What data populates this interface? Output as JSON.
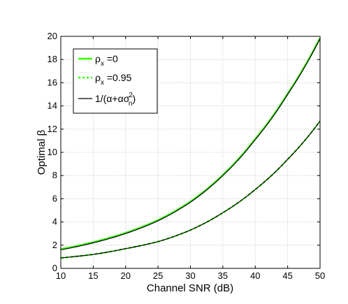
{
  "chart_data": {
    "type": "line",
    "xlabel": "Channel SNR (dB)",
    "ylabel": "Optimal β",
    "xlim": [
      10,
      50
    ],
    "ylim": [
      0,
      20
    ],
    "x_ticks": [
      "10",
      "15",
      "20",
      "25",
      "30",
      "35",
      "40",
      "45",
      "50"
    ],
    "y_ticks": [
      "0",
      "2",
      "4",
      "6",
      "8",
      "10",
      "12",
      "14",
      "16",
      "18",
      "20"
    ],
    "grid": true,
    "legend_position": "top-left",
    "legend": [
      {
        "base": "ρ",
        "sub": "x",
        "suffix": " =0"
      },
      {
        "base": "ρ",
        "sub": "x",
        "suffix": " =0.95"
      },
      {
        "base": "1/(α+ασ",
        "sup": "2",
        "sub": "n",
        "suffix": ")"
      }
    ],
    "series": [
      {
        "style": "solid-green",
        "x": [
          10,
          15,
          20,
          25,
          30,
          35,
          40,
          45,
          50
        ],
        "values": [
          1.6,
          2.2,
          3.0,
          4.1,
          5.7,
          8.0,
          11.1,
          15.0,
          19.8
        ]
      },
      {
        "style": "dashed-green",
        "x": [
          10,
          15,
          20,
          25,
          30,
          35,
          40,
          45,
          50
        ],
        "values": [
          0.9,
          1.2,
          1.7,
          2.3,
          3.3,
          4.8,
          6.8,
          9.4,
          12.7
        ]
      },
      {
        "style": "solid-black",
        "x": [
          10,
          15,
          20,
          25,
          30,
          35,
          40,
          45,
          50
        ],
        "values": [
          1.6,
          2.2,
          3.0,
          4.1,
          5.7,
          8.0,
          11.1,
          15.0,
          19.8
        ]
      },
      {
        "style": "solid-black",
        "x": [
          10,
          15,
          20,
          25,
          30,
          35,
          40,
          45,
          50
        ],
        "values": [
          0.9,
          1.2,
          1.7,
          2.3,
          3.3,
          4.8,
          6.8,
          9.4,
          12.7
        ]
      }
    ],
    "colors": {
      "green": "#33ff00",
      "black": "#000000",
      "grid": "#b4b4b4"
    }
  }
}
